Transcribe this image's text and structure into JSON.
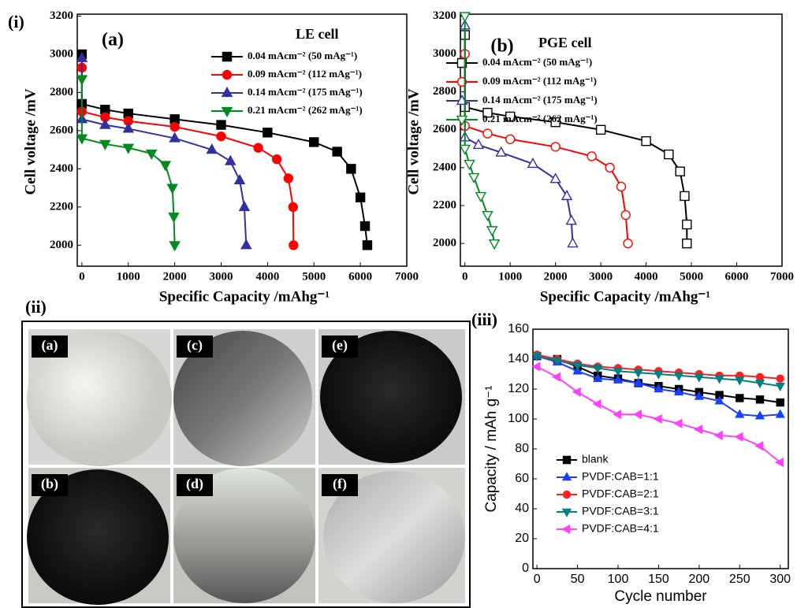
{
  "panel_labels": [
    "(i)",
    "(ii)",
    "(iii)"
  ],
  "photos": {
    "labels": [
      "(a)",
      "(b)",
      "(c)",
      "(d)",
      "(e)",
      "(f)"
    ]
  },
  "chart_data": [
    {
      "type": "line",
      "panel": "(a)",
      "legend_title": "LE cell",
      "x_label": "Specific Capacity /mAhg⁻¹",
      "y_label": "Cell voltage /mV",
      "xlim": [
        -100,
        7000
      ],
      "xticks": [
        0,
        1000,
        2000,
        3000,
        4000,
        5000,
        6000,
        7000
      ],
      "ylim": [
        1890,
        3210
      ],
      "yticks": [
        2000,
        2200,
        2400,
        2600,
        2800,
        3000,
        3200
      ],
      "legend": "upper right",
      "series": [
        {
          "name": "0.04 mAcm⁻² (50 mAg⁻¹)",
          "color": "#000000",
          "marker": "square",
          "filled": true,
          "x": [
            0,
            0,
            500,
            1000,
            2000,
            3000,
            4000,
            5000,
            5500,
            5800,
            6000,
            6100,
            6150
          ],
          "values": [
            3000,
            2740,
            2710,
            2690,
            2660,
            2630,
            2590,
            2540,
            2490,
            2400,
            2250,
            2100,
            2000
          ]
        },
        {
          "name": "0.09 mAcm⁻² (112 mAg⁻¹)",
          "color": "#ff0000",
          "marker": "circle",
          "filled": true,
          "x": [
            0,
            0,
            500,
            1000,
            2000,
            3000,
            3800,
            4200,
            4450,
            4550,
            4560
          ],
          "values": [
            2930,
            2700,
            2670,
            2650,
            2620,
            2570,
            2510,
            2450,
            2350,
            2200,
            2000
          ]
        },
        {
          "name": "0.14 mAcm⁻² (175 mAg⁻¹)",
          "color": "#3030a0",
          "marker": "triangle-up",
          "filled": true,
          "x": [
            0,
            0,
            500,
            1000,
            2000,
            2800,
            3200,
            3400,
            3500,
            3540
          ],
          "values": [
            2980,
            2660,
            2630,
            2610,
            2560,
            2500,
            2440,
            2340,
            2200,
            2000
          ]
        },
        {
          "name": "0.21 mAcm⁻² (262 mAg⁻¹)",
          "color": "#008a20",
          "marker": "triangle-down",
          "filled": true,
          "x": [
            0,
            0,
            500,
            1000,
            1500,
            1800,
            1950,
            1980,
            2000
          ],
          "values": [
            2870,
            2560,
            2530,
            2510,
            2480,
            2420,
            2300,
            2150,
            2000
          ]
        }
      ]
    },
    {
      "type": "line",
      "panel": "(b)",
      "legend_title": "PGE cell",
      "x_label": "Specific Capacity /mAhg⁻¹",
      "y_label": "Cell voltage /mV",
      "xlim": [
        -100,
        7000
      ],
      "xticks": [
        0,
        1000,
        2000,
        3000,
        4000,
        5000,
        6000,
        7000
      ],
      "ylim": [
        1880,
        3210
      ],
      "yticks": [
        2000,
        2200,
        2400,
        2600,
        2800,
        3000,
        3200
      ],
      "legend": "upper right",
      "series": [
        {
          "name": "0.04 mAcm⁻² (50 mAg⁻¹)",
          "color": "#000000",
          "marker": "square",
          "filled": false,
          "x": [
            0,
            0,
            500,
            1000,
            2000,
            3000,
            4000,
            4500,
            4750,
            4850,
            4900,
            4900
          ],
          "values": [
            3100,
            2720,
            2690,
            2670,
            2640,
            2600,
            2540,
            2470,
            2380,
            2250,
            2100,
            2000
          ]
        },
        {
          "name": "0.09 mAcm⁻² (112 mAg⁻¹)",
          "color": "#ff0000",
          "marker": "circle",
          "filled": false,
          "x": [
            0,
            0,
            500,
            1000,
            2000,
            2800,
            3200,
            3450,
            3550,
            3600
          ],
          "values": [
            3000,
            2620,
            2580,
            2550,
            2510,
            2460,
            2400,
            2300,
            2150,
            2000
          ]
        },
        {
          "name": "0.14 mAcm⁻² (175 mAg⁻¹)",
          "color": "#3030a0",
          "marker": "triangle-up",
          "filled": false,
          "x": [
            0,
            0,
            300,
            800,
            1500,
            2000,
            2250,
            2350,
            2380
          ],
          "values": [
            3150,
            2560,
            2520,
            2480,
            2420,
            2340,
            2250,
            2120,
            2000
          ]
        },
        {
          "name": "0.21 mAcm⁻² (262 mAg⁻¹)",
          "color": "#008a20",
          "marker": "triangle-down",
          "filled": false,
          "x": [
            0,
            0,
            100,
            200,
            350,
            500,
            600,
            650
          ],
          "values": [
            3200,
            2500,
            2420,
            2350,
            2250,
            2150,
            2070,
            2000
          ]
        }
      ]
    },
    {
      "type": "line",
      "x_label": "Cycle number",
      "y_label": "Capacity / mAh g⁻¹",
      "xlim": [
        -5,
        310
      ],
      "xticks": [
        0,
        50,
        100,
        150,
        200,
        250,
        300
      ],
      "ylim": [
        0,
        160
      ],
      "yticks": [
        0,
        20,
        40,
        60,
        80,
        100,
        120,
        140,
        160
      ],
      "legend": "lower left",
      "series": [
        {
          "name": "blank",
          "color": "#000000",
          "marker": "square",
          "filled": true,
          "x": [
            0,
            25,
            50,
            75,
            100,
            125,
            150,
            175,
            200,
            225,
            250,
            275,
            300
          ],
          "values": [
            142,
            140,
            135,
            129,
            127,
            124,
            122,
            120,
            118,
            116,
            114,
            113,
            111
          ]
        },
        {
          "name": "PVDF:CAB=1:1",
          "color": "#1a3fff",
          "marker": "triangle-up",
          "filled": true,
          "x": [
            0,
            25,
            50,
            75,
            100,
            125,
            150,
            175,
            200,
            225,
            250,
            275,
            300
          ],
          "values": [
            142,
            138,
            132,
            127,
            126,
            124,
            120,
            118,
            115,
            112,
            103,
            102,
            103
          ]
        },
        {
          "name": "PVDF:CAB=2:1",
          "color": "#ff2020",
          "marker": "circle",
          "filled": true,
          "x": [
            0,
            25,
            50,
            75,
            100,
            125,
            150,
            175,
            200,
            225,
            250,
            275,
            300
          ],
          "values": [
            143,
            140,
            137,
            135,
            134,
            133,
            132,
            131,
            130,
            129,
            129,
            128,
            127
          ]
        },
        {
          "name": "PVDF:CAB=3:1",
          "color": "#008080",
          "marker": "triangle-down",
          "filled": true,
          "x": [
            0,
            25,
            50,
            75,
            100,
            125,
            150,
            175,
            200,
            225,
            250,
            275,
            300
          ],
          "values": [
            142,
            139,
            136,
            134,
            132,
            131,
            130,
            129,
            128,
            127,
            126,
            124,
            122
          ]
        },
        {
          "name": "PVDF:CAB=4:1",
          "color": "#ff40ff",
          "marker": "triangle-left",
          "filled": true,
          "x": [
            0,
            25,
            50,
            75,
            100,
            125,
            150,
            175,
            200,
            225,
            250,
            275,
            300
          ],
          "values": [
            135,
            128,
            118,
            110,
            103,
            103,
            100,
            97,
            93,
            89,
            88,
            82,
            71
          ]
        }
      ]
    }
  ]
}
